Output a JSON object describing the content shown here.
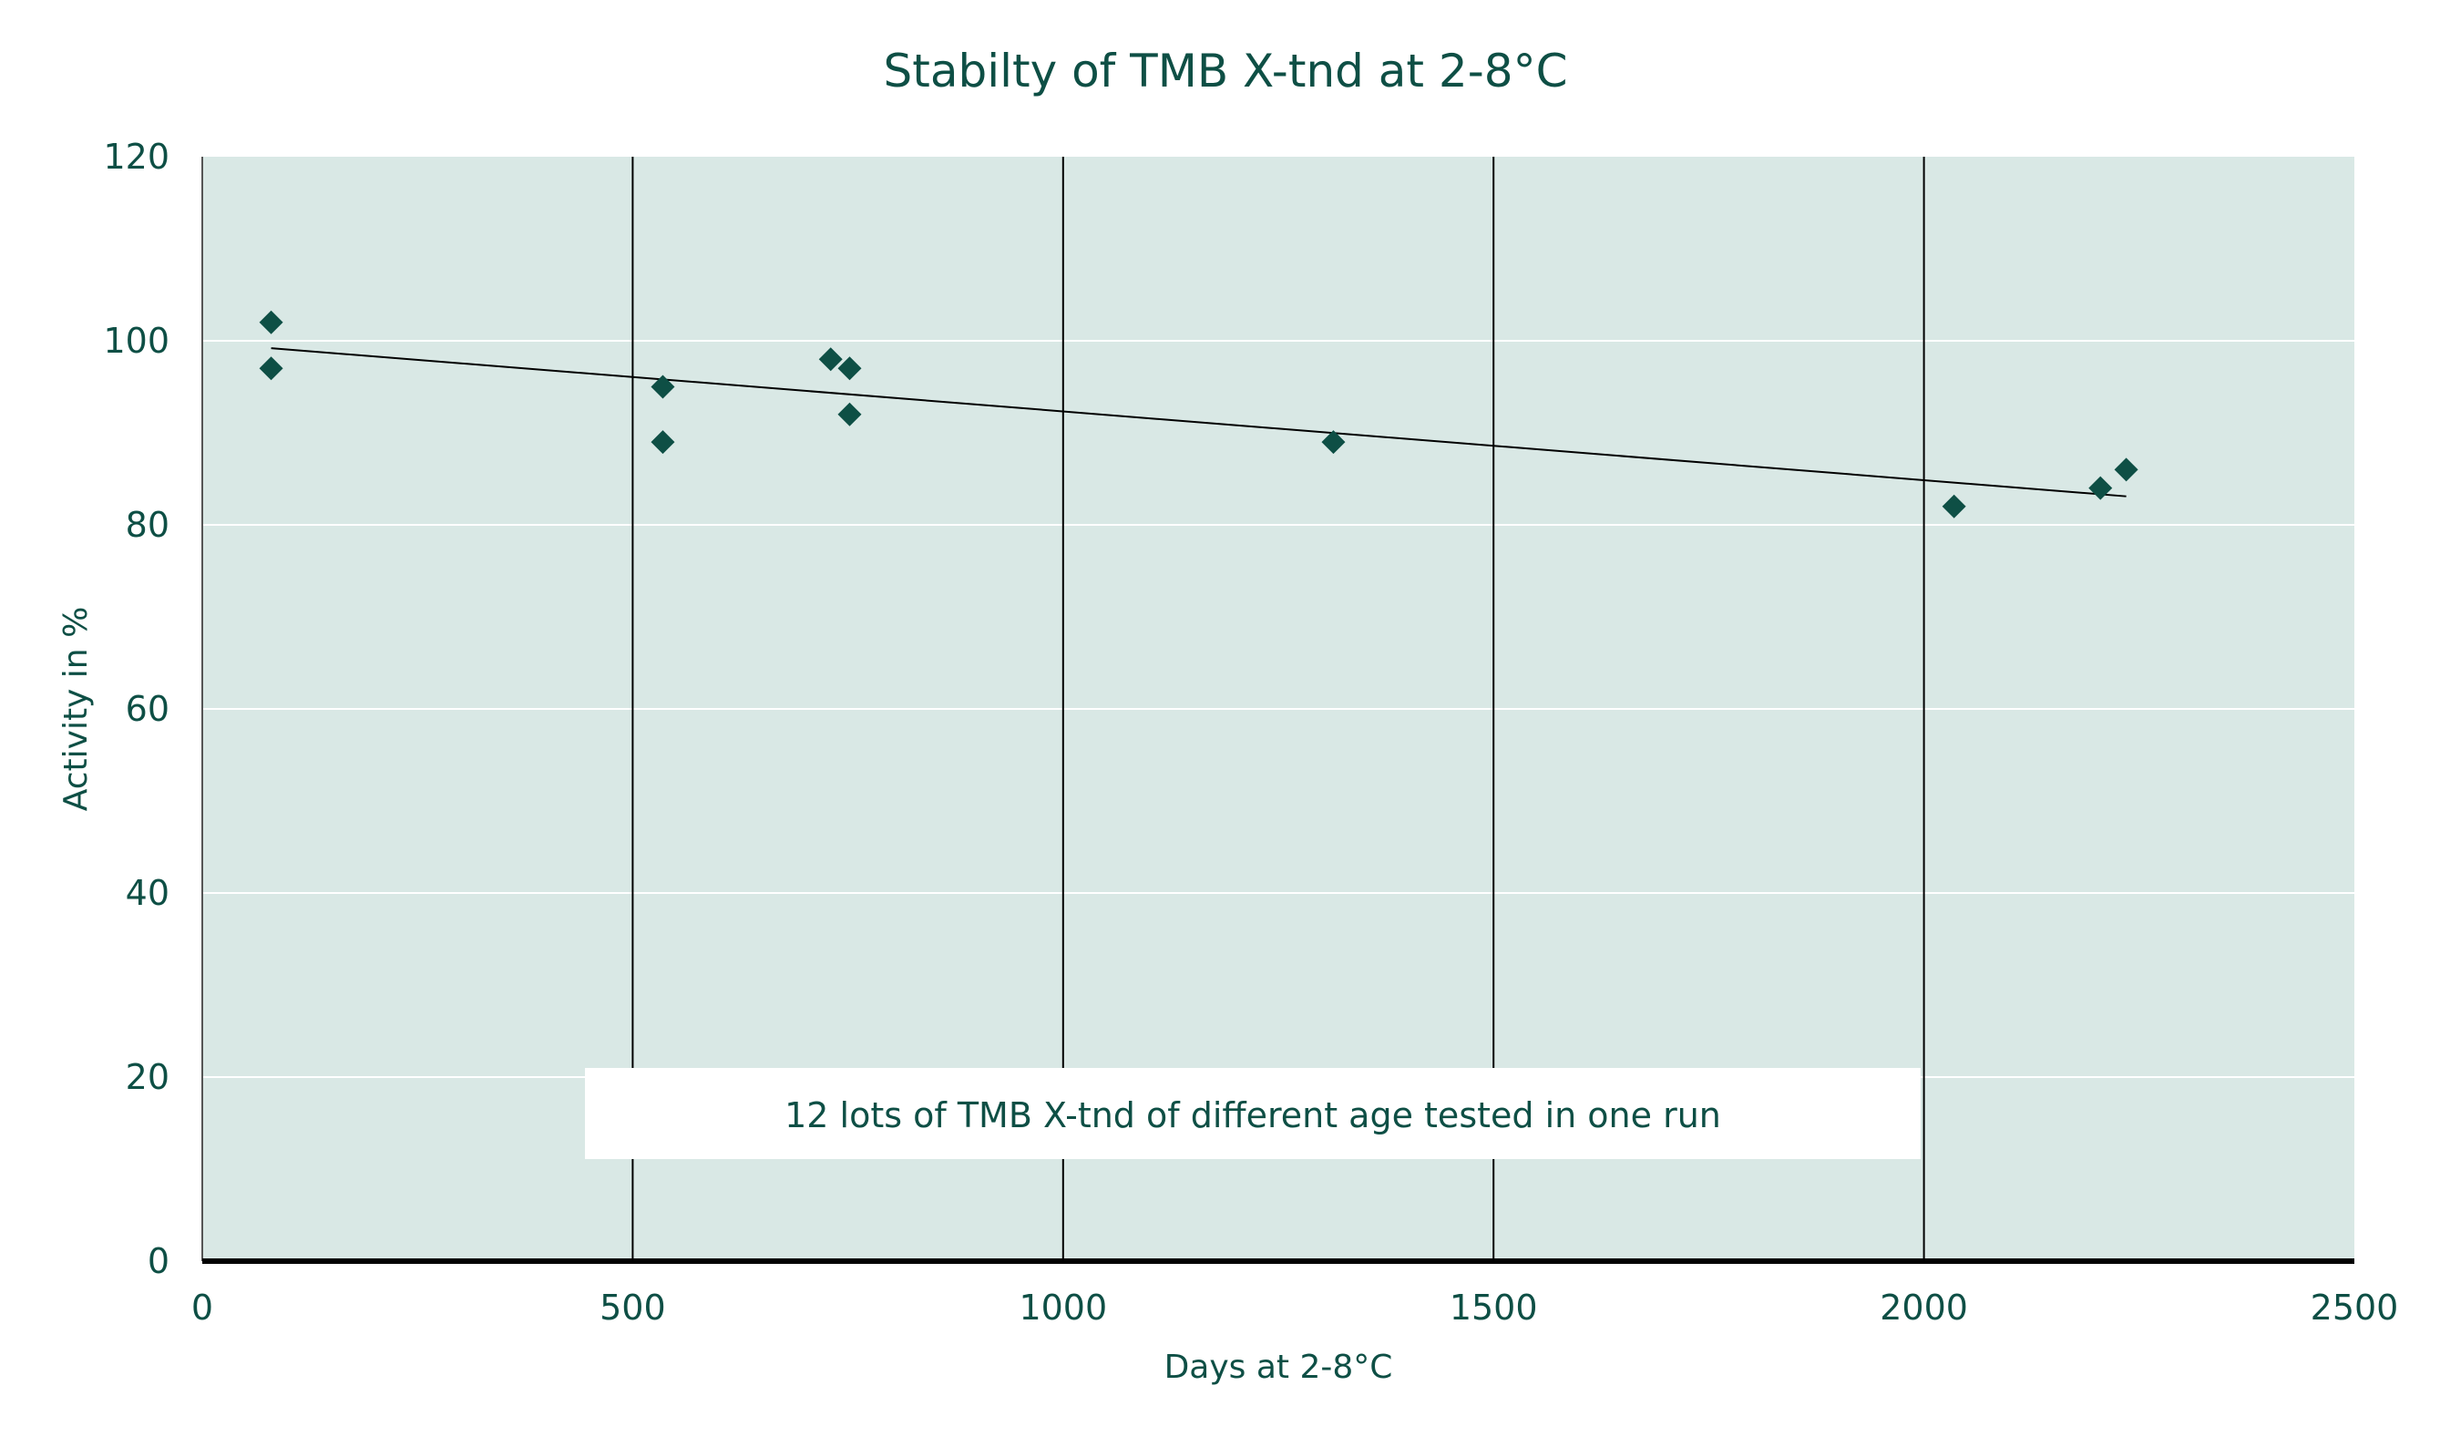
{
  "chart_data": {
    "type": "scatter",
    "title": "Stabilty of TMB X-tnd  at 2-8°C",
    "xlabel": "Days at 2-8°C",
    "ylabel": "Activity in %",
    "xlim": [
      0,
      2500
    ],
    "ylim": [
      0,
      120
    ],
    "xticks": [
      0,
      500,
      1000,
      1500,
      2000,
      2500
    ],
    "yticks": [
      0,
      20,
      40,
      60,
      80,
      100,
      120
    ],
    "series": [
      {
        "name": "Activity",
        "marker": "diamond",
        "color": "#0e4f45",
        "points": [
          {
            "x": 80,
            "y": 102
          },
          {
            "x": 80,
            "y": 97
          },
          {
            "x": 535,
            "y": 95
          },
          {
            "x": 535,
            "y": 89
          },
          {
            "x": 730,
            "y": 98
          },
          {
            "x": 752,
            "y": 97
          },
          {
            "x": 752,
            "y": 92
          },
          {
            "x": 1314,
            "y": 89
          },
          {
            "x": 2035,
            "y": 82
          },
          {
            "x": 2205,
            "y": 84
          },
          {
            "x": 2235,
            "y": 86
          }
        ]
      }
    ],
    "trendline": {
      "x": [
        80,
        2235
      ],
      "y": [
        99.2,
        83.1
      ],
      "color": "#000000"
    },
    "annotation": "12 lots of TMB X-tnd of different age tested in one run",
    "grid": {
      "vertical_lines": [
        500,
        1000,
        1500,
        2000
      ],
      "horizontal_lines": [
        20,
        40,
        60,
        80,
        100
      ]
    },
    "colors": {
      "plot_bg": "#d9e8e5",
      "text": "#0e4f45",
      "marker": "#0e4f45"
    }
  }
}
